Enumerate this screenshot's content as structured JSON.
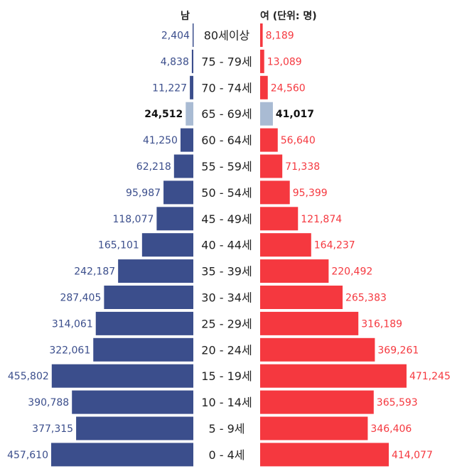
{
  "header": {
    "male_label": "남",
    "female_label": "여 (단위: 명)"
  },
  "colors": {
    "male": "#3b4e8c",
    "female": "#f5383f",
    "highlight": "#a9bbd3",
    "male_text": "#3b4e8c",
    "female_text": "#f5383f",
    "highlight_text": "#111111",
    "age_text": "#222222"
  },
  "chart_data": {
    "type": "bar",
    "orientation": "horizontal",
    "layout": "population-pyramid",
    "categories": [
      "80세이상",
      "75 - 79세",
      "70 - 74세",
      "65 - 69세",
      "60 - 64세",
      "55 - 59세",
      "50 - 54세",
      "45 - 49세",
      "40 - 44세",
      "35 - 39세",
      "30 - 34세",
      "25 - 29세",
      "20 - 24세",
      "15 - 19세",
      "10 - 14세",
      "5 - 9세",
      "0 - 4세"
    ],
    "series": [
      {
        "name": "남",
        "values": [
          2404,
          4838,
          11227,
          24512,
          41250,
          62218,
          95987,
          118077,
          165101,
          242187,
          287405,
          314061,
          322061,
          455802,
          390788,
          377315,
          457610
        ],
        "labels": [
          "2,404",
          "4,838",
          "11,227",
          "24,512",
          "41,250",
          "62,218",
          "95,987",
          "118,077",
          "165,101",
          "242,187",
          "287,405",
          "314,061",
          "322,061",
          "455,802",
          "390,788",
          "377,315",
          "457,610"
        ]
      },
      {
        "name": "여",
        "values": [
          8189,
          13089,
          24560,
          41017,
          56640,
          71338,
          95399,
          121874,
          164237,
          220492,
          265383,
          316189,
          369261,
          471245,
          365593,
          346406,
          414077
        ],
        "labels": [
          "8,189",
          "13,089",
          "24,560",
          "41,017",
          "56,640",
          "71,338",
          "95,399",
          "121,874",
          "164,237",
          "220,492",
          "265,383",
          "316,189",
          "369,261",
          "471,245",
          "365,593",
          "346,406",
          "414,077"
        ]
      }
    ],
    "highlight_category": "65 - 69세",
    "unit": "명",
    "grid": false,
    "legend": "top"
  }
}
